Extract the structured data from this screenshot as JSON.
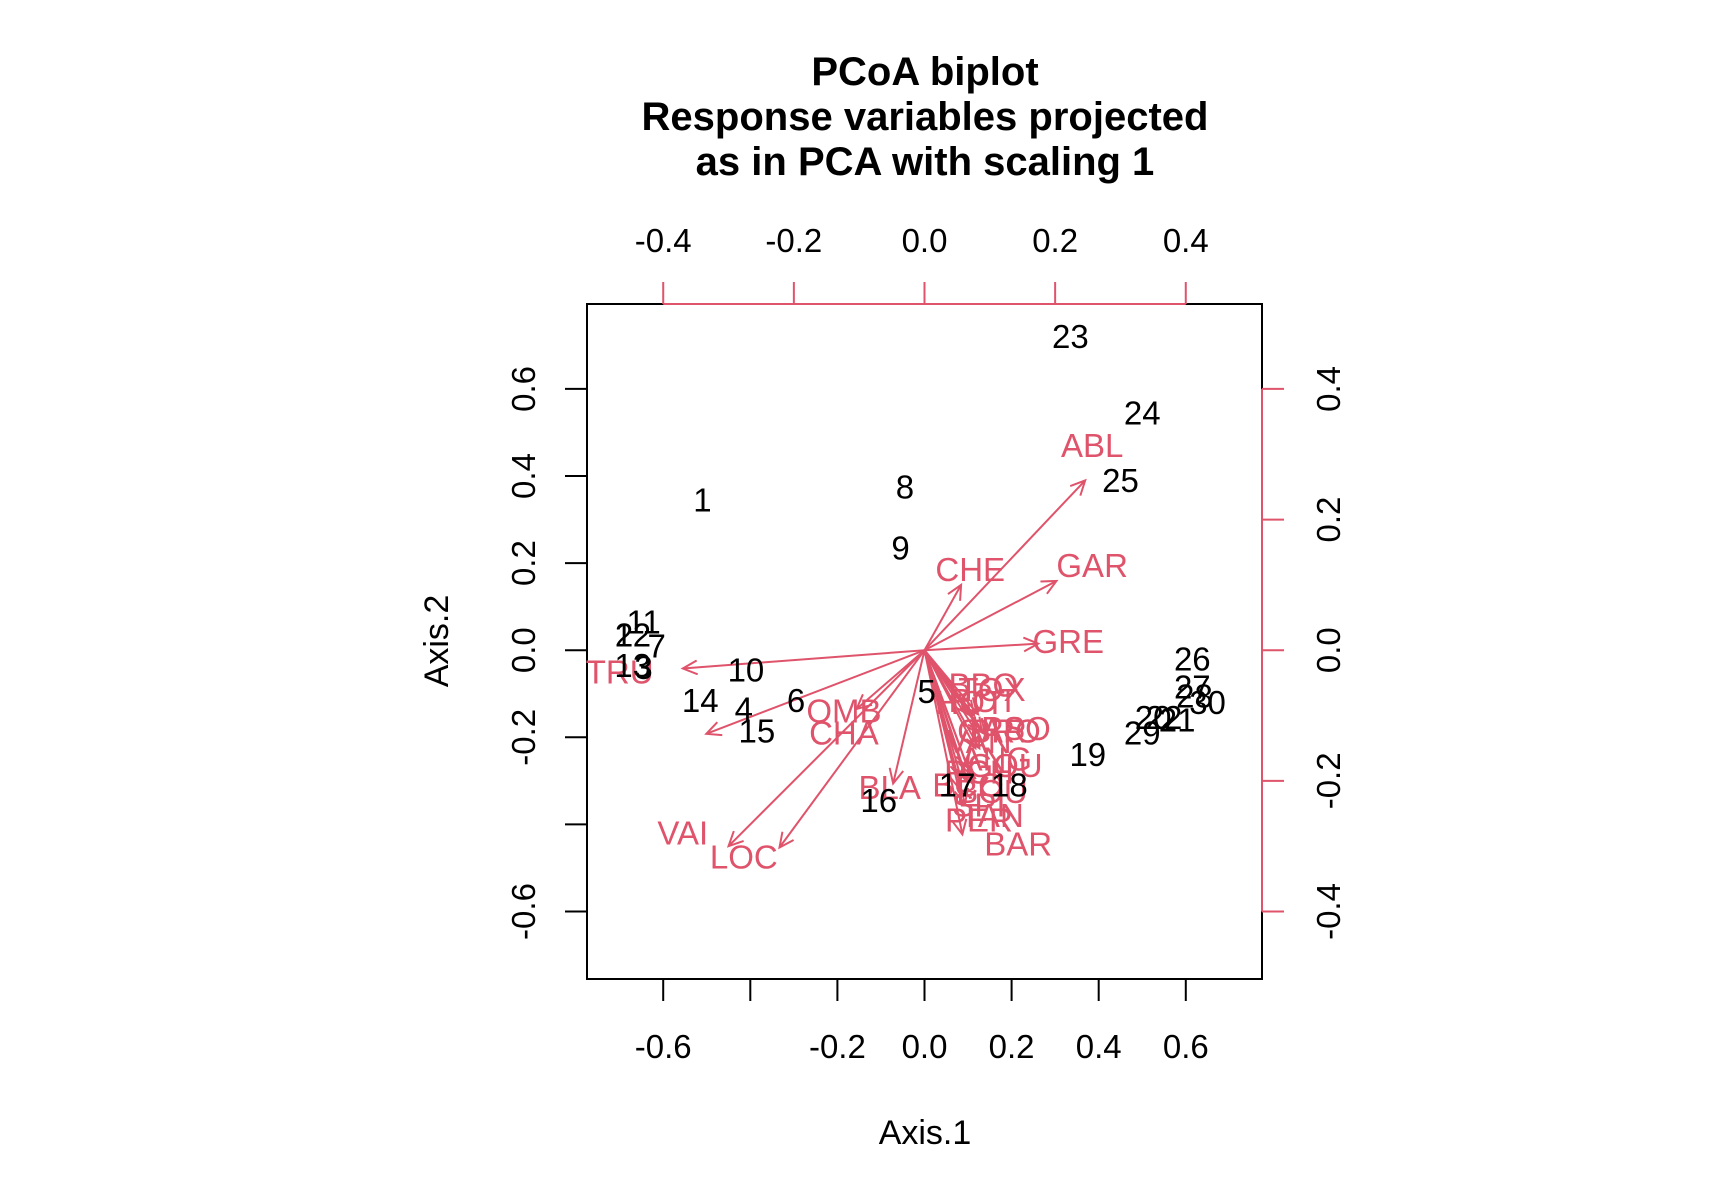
{
  "chart_data": {
    "type": "scatter",
    "title": [
      "PCoA biplot",
      "Response variables projected",
      "as in PCA with scaling 1"
    ],
    "xlabel": "Axis.1",
    "ylabel": "Axis.2",
    "xlim": [
      -0.775,
      0.775
    ],
    "ylim": [
      -0.755,
      0.795
    ],
    "xticks": [
      -0.6,
      -0.2,
      0.0,
      0.2,
      0.4,
      0.6
    ],
    "xtick_labels": [
      "-0.6",
      "-0.2",
      "0.0",
      "0.2",
      "0.4",
      "0.6"
    ],
    "xtick_marks": [
      -0.6,
      -0.4,
      -0.2,
      0.0,
      0.2,
      0.4,
      0.6
    ],
    "yticks": [
      -0.6,
      -0.4,
      -0.2,
      0.0,
      0.2,
      0.4,
      0.6
    ],
    "ytick_labels": [
      "-0.6",
      "",
      "-0.2",
      "0.0",
      "0.2",
      "0.4",
      "0.6"
    ],
    "arrow_axis_top_ticks": [
      -0.4,
      -0.2,
      0.0,
      0.2,
      0.4
    ],
    "arrow_axis_top_labels": [
      "-0.4",
      "-0.2",
      "0.0",
      "0.2",
      "0.4"
    ],
    "arrow_axis_right_ticks": [
      -0.4,
      -0.2,
      0.0,
      0.2,
      0.4
    ],
    "arrow_axis_right_labels": [
      "-0.4",
      "-0.2",
      "0.0",
      "0.2",
      "0.4"
    ],
    "arrow_scale": 0.6667,
    "grid": false,
    "colors": {
      "sites": "#000000",
      "variables": "#DF536B"
    },
    "sites": [
      {
        "label": "1",
        "x": -0.51,
        "y": 0.345
      },
      {
        "label": "2",
        "x": -0.69,
        "y": 0.035
      },
      {
        "label": "3",
        "x": -0.645,
        "y": -0.04
      },
      {
        "label": "4",
        "x": -0.415,
        "y": -0.135
      },
      {
        "label": "5",
        "x": 0.005,
        "y": -0.095
      },
      {
        "label": "6",
        "x": -0.295,
        "y": -0.115
      },
      {
        "label": "7",
        "x": -0.615,
        "y": 0.01
      },
      {
        "label": "8",
        "x": -0.045,
        "y": 0.375
      },
      {
        "label": "9",
        "x": -0.055,
        "y": 0.235
      },
      {
        "label": "10",
        "x": -0.41,
        "y": -0.045
      },
      {
        "label": "11",
        "x": -0.645,
        "y": 0.065
      },
      {
        "label": "12",
        "x": -0.67,
        "y": 0.035
      },
      {
        "label": "13",
        "x": -0.67,
        "y": -0.035
      },
      {
        "label": "14",
        "x": -0.515,
        "y": -0.115
      },
      {
        "label": "15",
        "x": -0.385,
        "y": -0.185
      },
      {
        "label": "16",
        "x": -0.105,
        "y": -0.345
      },
      {
        "label": "17",
        "x": 0.075,
        "y": -0.31
      },
      {
        "label": "18",
        "x": 0.195,
        "y": -0.31
      },
      {
        "label": "19",
        "x": 0.375,
        "y": -0.24
      },
      {
        "label": "20",
        "x": 0.525,
        "y": -0.155
      },
      {
        "label": "21",
        "x": 0.58,
        "y": -0.16
      },
      {
        "label": "22",
        "x": 0.55,
        "y": -0.155
      },
      {
        "label": "23",
        "x": 0.335,
        "y": 0.72
      },
      {
        "label": "24",
        "x": 0.5,
        "y": 0.545
      },
      {
        "label": "25",
        "x": 0.45,
        "y": 0.39
      },
      {
        "label": "26",
        "x": 0.615,
        "y": -0.02
      },
      {
        "label": "27",
        "x": 0.615,
        "y": -0.085
      },
      {
        "label": "28",
        "x": 0.62,
        "y": -0.105
      },
      {
        "label": "29",
        "x": 0.5,
        "y": -0.19
      },
      {
        "label": "30",
        "x": 0.65,
        "y": -0.12
      }
    ],
    "variables": [
      {
        "name": "CHA",
        "x": -0.334,
        "y": -0.128,
        "lx": -0.185,
        "ly": -0.19
      },
      {
        "name": "TRU",
        "x": -0.37,
        "y": -0.028,
        "lx": -0.7,
        "ly": -0.05
      },
      {
        "name": "VAI",
        "x": -0.3,
        "y": -0.3,
        "lx": -0.555,
        "ly": -0.42
      },
      {
        "name": "LOC",
        "x": -0.222,
        "y": -0.302,
        "lx": -0.415,
        "ly": -0.475
      },
      {
        "name": "OMB",
        "x": -0.104,
        "y": -0.09,
        "lx": -0.185,
        "ly": -0.14
      },
      {
        "name": "BLA",
        "x": -0.048,
        "y": -0.204,
        "lx": -0.08,
        "ly": -0.315
      },
      {
        "name": "HOT",
        "x": 0.08,
        "y": -0.096,
        "lx": 0.105,
        "ly": -0.12
      },
      {
        "name": "TOX",
        "x": 0.082,
        "y": -0.098,
        "lx": 0.155,
        "ly": -0.09
      },
      {
        "name": "VAN",
        "x": 0.078,
        "y": -0.15,
        "lx": 0.125,
        "ly": -0.21
      },
      {
        "name": "CHE",
        "x": 0.056,
        "y": 0.1,
        "lx": 0.105,
        "ly": 0.185
      },
      {
        "name": "BAR",
        "x": 0.058,
        "y": -0.282,
        "lx": 0.215,
        "ly": -0.445
      },
      {
        "name": "SPI",
        "x": 0.062,
        "y": -0.235,
        "lx": 0.125,
        "ly": -0.355
      },
      {
        "name": "GOU",
        "x": 0.084,
        "y": -0.15,
        "lx": 0.185,
        "ly": -0.265
      },
      {
        "name": "BRO",
        "x": 0.088,
        "y": -0.126,
        "lx": 0.185,
        "ly": -0.185
      },
      {
        "name": "PER",
        "x": 0.052,
        "y": -0.21,
        "lx": 0.125,
        "ly": -0.39
      },
      {
        "name": "BOU",
        "x": 0.07,
        "y": -0.19,
        "lx": 0.155,
        "ly": -0.325
      },
      {
        "name": "PSO",
        "x": 0.092,
        "y": -0.128,
        "lx": 0.21,
        "ly": -0.18
      },
      {
        "name": "ROT",
        "x": 0.076,
        "y": -0.1,
        "lx": 0.135,
        "ly": -0.115
      },
      {
        "name": "CAR",
        "x": 0.08,
        "y": -0.126,
        "lx": 0.155,
        "ly": -0.185
      },
      {
        "name": "TAN",
        "x": 0.064,
        "y": -0.2,
        "lx": 0.155,
        "ly": -0.38
      },
      {
        "name": "BCO",
        "x": 0.056,
        "y": -0.196,
        "lx": 0.1,
        "ly": -0.31
      },
      {
        "name": "PCH",
        "x": 0.066,
        "y": -0.2,
        "lx": 0.125,
        "ly": -0.28
      },
      {
        "name": "GRE",
        "x": 0.174,
        "y": 0.01,
        "lx": 0.33,
        "ly": 0.02
      },
      {
        "name": "GAR",
        "x": 0.202,
        "y": 0.106,
        "lx": 0.385,
        "ly": 0.195
      },
      {
        "name": "BBO",
        "x": 0.07,
        "y": -0.1,
        "lx": 0.135,
        "ly": -0.08
      },
      {
        "name": "ABL",
        "x": 0.246,
        "y": 0.26,
        "lx": 0.385,
        "ly": 0.47
      },
      {
        "name": "ANG",
        "x": 0.066,
        "y": -0.18,
        "lx": 0.165,
        "ly": -0.25
      }
    ]
  }
}
